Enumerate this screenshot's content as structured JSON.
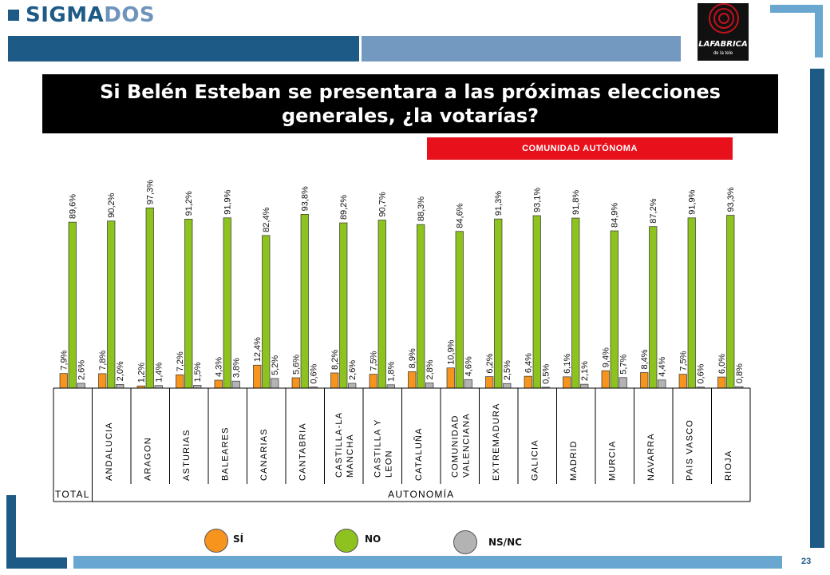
{
  "brand": {
    "name_part1": "SIGMA",
    "name_part2": "DOS"
  },
  "station_logo": {
    "name": "LAFABRICA",
    "tagline": "de la tele"
  },
  "title": "Si Belén Esteban se presentara a las próximas elecciones generales, ¿la votarías?",
  "subtitle": "COMUNIDAD AUTÓNOMA",
  "page_number": "23",
  "colors": {
    "si": "#f7941d",
    "no": "#8dc21f",
    "nsnc": "#b3b3b3",
    "brand": "#1e5a86",
    "accent": "#e8101b"
  },
  "chart_data": {
    "type": "bar",
    "categories": [
      "TOTAL",
      "ANDALUCIA",
      "ARAGON",
      "ASTURIAS",
      "BALEARES",
      "CANARIAS",
      "CANTABRIA",
      "CASTILLA-LA MANCHA",
      "CASTILLA Y LEON",
      "CATALUÑA",
      "COMUNIDAD VALENCIANA",
      "EXTREMADURA",
      "GALICIA",
      "MADRID",
      "MURCIA",
      "NAVARRA",
      "PAIS VASCO",
      "RIOJA"
    ],
    "series": [
      {
        "name": "SÍ",
        "values": [
          7.9,
          7.8,
          1.2,
          7.2,
          4.3,
          12.4,
          5.6,
          8.2,
          7.5,
          8.9,
          10.9,
          6.2,
          6.4,
          6.1,
          9.4,
          8.4,
          7.5,
          6.0
        ]
      },
      {
        "name": "NO",
        "values": [
          89.6,
          90.2,
          97.3,
          91.2,
          91.9,
          82.4,
          93.8,
          89.2,
          90.7,
          88.3,
          84.6,
          91.3,
          93.1,
          91.8,
          84.9,
          87.2,
          91.9,
          93.3
        ]
      },
      {
        "name": "NS/NC",
        "values": [
          2.6,
          2.0,
          1.4,
          1.5,
          3.8,
          5.2,
          0.6,
          2.6,
          1.8,
          2.8,
          4.6,
          2.5,
          0.5,
          2.1,
          5.7,
          4.4,
          0.6,
          0.8
        ]
      }
    ],
    "labels": [
      "7,9%",
      "7,8%",
      "1,2%",
      "7,2%",
      "4,3%",
      "12,4%",
      "5,6%",
      "8,2%",
      "7,5%",
      "8,9%",
      "10,9%",
      "6,2%",
      "6,4%",
      "6,1%",
      "9,4%",
      "8,4%",
      "7,5%",
      "6,0%",
      "89,6%",
      "90,2%",
      "97,3%",
      "91,2%",
      "91,9%",
      "82,4%",
      "93,8%",
      "89,2%",
      "90,7%",
      "88,3%",
      "84,6%",
      "91,3%",
      "93,1%",
      "91,8%",
      "84,9%",
      "87,2%",
      "91,9%",
      "93,3%",
      "2,6%",
      "2,0%",
      "1,4%",
      "1,5%",
      "3,8%",
      "5,2%",
      "0,6%",
      "2,6%",
      "1,8%",
      "2,8%",
      "4,6%",
      "2,5%",
      "0,5%",
      "2,1%",
      "5,7%",
      "4,4%",
      "0,6%",
      "0,8%"
    ],
    "group_labels": [
      "TOTAL",
      "AUTONOMÍA"
    ],
    "ylim": [
      0,
      100
    ],
    "grid": false,
    "legend_position": "bottom"
  }
}
